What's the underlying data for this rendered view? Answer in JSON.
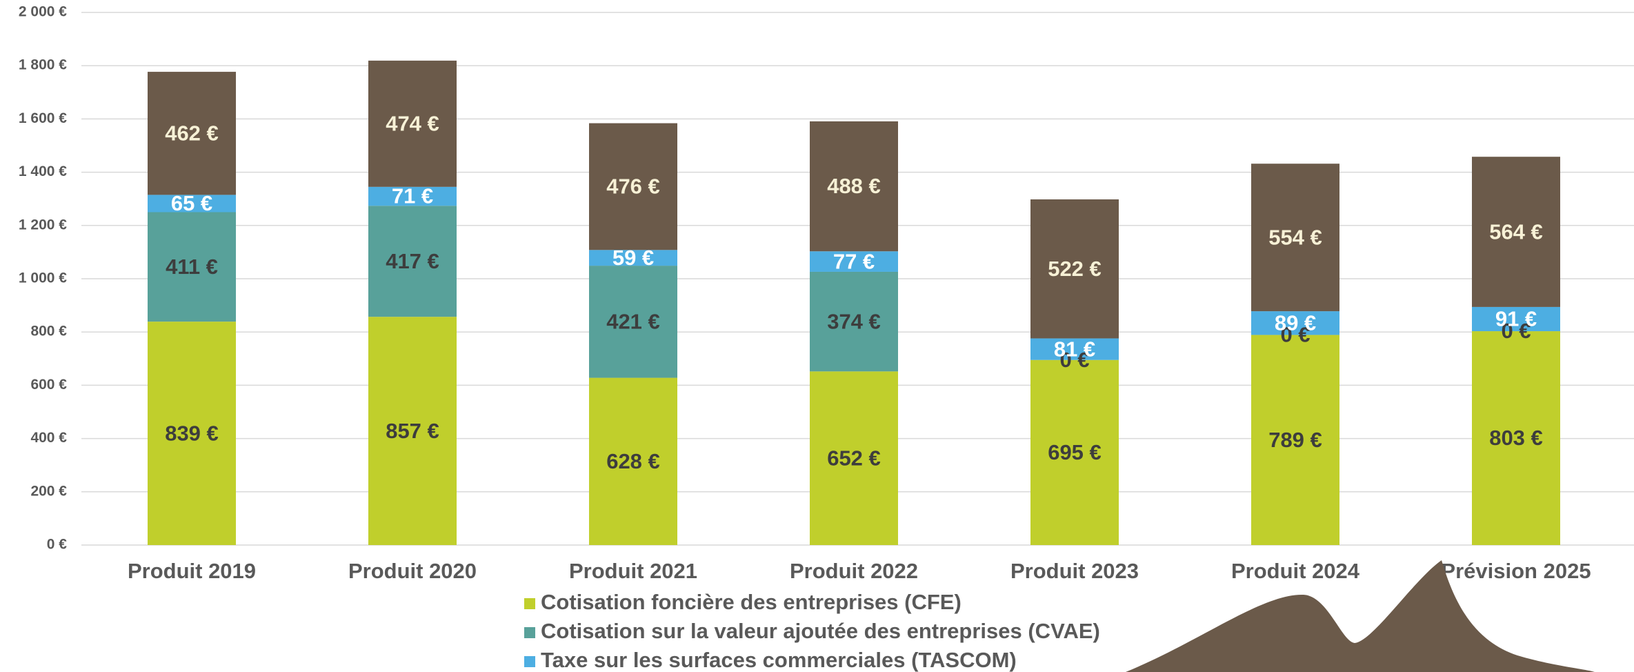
{
  "chart_data": {
    "type": "bar",
    "stacked": true,
    "categories": [
      "Produit 2019",
      "Produit 2020",
      "Produit 2021",
      "Produit 2022",
      "Produit 2023",
      "Produit 2024",
      "Prévision 2025"
    ],
    "series": [
      {
        "name": "Cotisation foncière des entreprises (CFE)",
        "color": "#c0cf2c",
        "label_color": "#3d3d3d",
        "values": [
          839,
          857,
          628,
          652,
          695,
          789,
          803
        ],
        "value_labels": [
          "839 €",
          "857 €",
          "628 €",
          "652 €",
          "695 €",
          "789 €",
          "803 €"
        ]
      },
      {
        "name": "Cotisation sur la valeur ajoutée des entreprises (CVAE)",
        "color": "#58a19a",
        "label_color": "#3d3d3d",
        "values": [
          411,
          417,
          421,
          374,
          0,
          0,
          0
        ],
        "value_labels": [
          "411 €",
          "417 €",
          "421 €",
          "374 €",
          "0 €",
          "0 €",
          "0 €"
        ]
      },
      {
        "name": "Taxe sur les surfaces commerciales (TASCOM)",
        "color": "#4daee2",
        "label_color": "#ffffff",
        "values": [
          65,
          71,
          59,
          77,
          81,
          89,
          91
        ],
        "value_labels": [
          "65 €",
          "71 €",
          "59 €",
          "77 €",
          "81 €",
          "89 €",
          "91 €"
        ]
      },
      {
        "color": "#6b5a4a",
        "label_color": "#f7f1d6",
        "values": [
          462,
          474,
          476,
          488,
          522,
          554,
          564
        ],
        "value_labels": [
          "462 €",
          "474 €",
          "476 €",
          "488 €",
          "522 €",
          "554 €",
          "564 €"
        ]
      }
    ],
    "ylim": [
      0,
      2000
    ],
    "yticks": [
      {
        "value": 0,
        "label": "0 €"
      },
      {
        "value": 200,
        "label": "200 €"
      },
      {
        "value": 400,
        "label": "400 €"
      },
      {
        "value": 600,
        "label": "600 €"
      },
      {
        "value": 800,
        "label": "800 €"
      },
      {
        "value": 1000,
        "label": "1 000 €"
      },
      {
        "value": 1200,
        "label": "1 200 €"
      },
      {
        "value": 1400,
        "label": "1 400 €"
      },
      {
        "value": 1600,
        "label": "1 600 €"
      },
      {
        "value": 1800,
        "label": "1 800 €"
      },
      {
        "value": 2000,
        "label": "2 000 €"
      }
    ],
    "grid": true
  }
}
